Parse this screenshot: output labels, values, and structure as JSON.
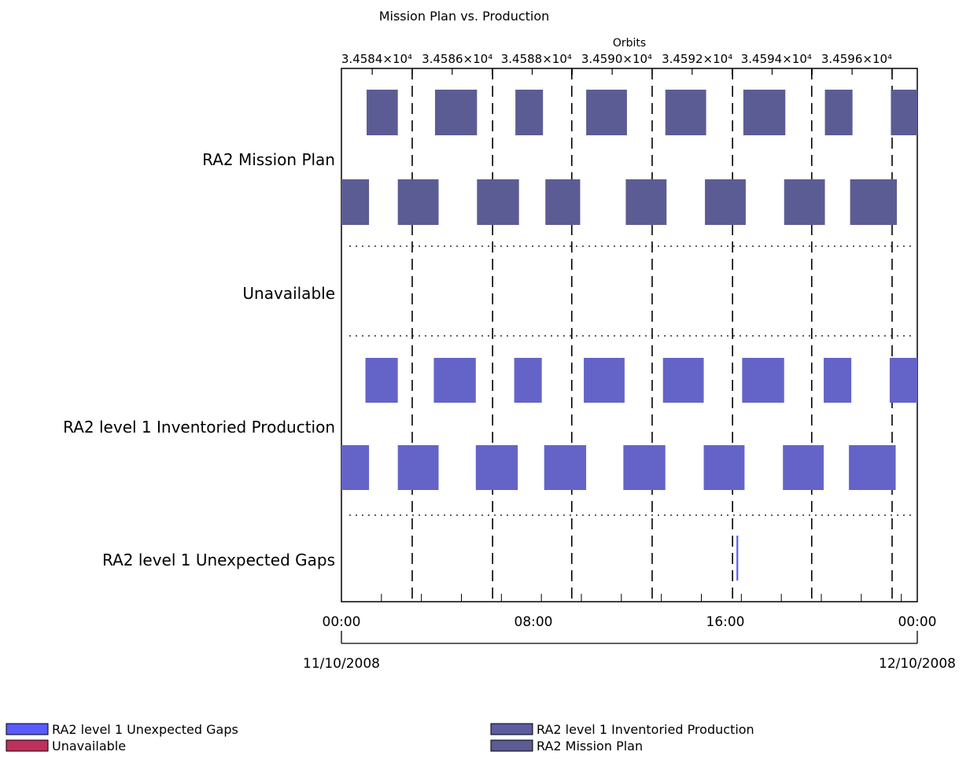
{
  "chart_data": {
    "type": "gantt",
    "title": "Mission Plan vs. Production",
    "top_axis": {
      "label": "Orbits",
      "tick_labels": [
        "3.4584×10⁴",
        "3.4586×10⁴",
        "3.4588×10⁴",
        "3.4590×10⁴",
        "3.4592×10⁴",
        "3.4594×10⁴",
        "3.4596×10⁴"
      ]
    },
    "x_axis": {
      "range_hours": [
        0,
        24
      ],
      "tick_labels": [
        {
          "hour": 0,
          "label": "00:00"
        },
        {
          "hour": 8,
          "label": "08:00"
        },
        {
          "hour": 16,
          "label": "16:00"
        },
        {
          "hour": 24,
          "label": "00:00"
        }
      ],
      "date_labels": [
        {
          "hour": 0,
          "label": "11/10/2008"
        },
        {
          "hour": 24,
          "label": "12/10/2008"
        }
      ]
    },
    "orbit_boundaries_hours": [
      2.95,
      6.3,
      9.6,
      12.95,
      16.3,
      19.6,
      22.95
    ],
    "rows": [
      {
        "label": "RA2 Mission Plan",
        "color": "#5c5c94",
        "upper_intervals": [
          [
            1.05,
            2.35
          ],
          [
            3.9,
            5.65
          ],
          [
            7.25,
            8.4
          ],
          [
            10.2,
            11.9
          ],
          [
            13.5,
            15.2
          ],
          [
            16.75,
            18.5
          ],
          [
            20.15,
            21.3
          ],
          [
            22.9,
            24.0
          ]
        ],
        "lower_intervals": [
          [
            0.0,
            1.15
          ],
          [
            2.35,
            4.05
          ],
          [
            5.65,
            7.4
          ],
          [
            8.5,
            9.95
          ],
          [
            11.85,
            13.55
          ],
          [
            15.15,
            16.85
          ],
          [
            18.45,
            20.15
          ],
          [
            21.2,
            23.15
          ]
        ]
      },
      {
        "label": "Unavailable",
        "color": "#c0305c",
        "upper_intervals": [],
        "lower_intervals": []
      },
      {
        "label": "RA2 level 1 Inventoried Production",
        "color": "#6464c8",
        "upper_intervals": [
          [
            1.0,
            2.35
          ],
          [
            3.85,
            5.6
          ],
          [
            7.2,
            8.35
          ],
          [
            10.1,
            11.8
          ],
          [
            13.4,
            15.1
          ],
          [
            16.7,
            18.45
          ],
          [
            20.1,
            21.25
          ],
          [
            22.85,
            24.0
          ]
        ],
        "lower_intervals": [
          [
            0.0,
            1.15
          ],
          [
            2.35,
            4.05
          ],
          [
            5.6,
            7.35
          ],
          [
            8.45,
            10.2
          ],
          [
            11.75,
            13.5
          ],
          [
            15.1,
            16.8
          ],
          [
            18.4,
            20.1
          ],
          [
            21.15,
            23.1
          ]
        ]
      },
      {
        "label": "RA2 level 1 Unexpected Gaps",
        "color": "#5a5aff",
        "marks_hours": [
          16.5
        ]
      }
    ],
    "legend": {
      "placement": "bottom",
      "items": [
        {
          "label": "RA2 level 1 Unexpected Gaps",
          "color": "#5a5aff"
        },
        {
          "label": "Unavailable",
          "color": "#c0305c"
        },
        {
          "label": "RA2 level 1 Inventoried Production",
          "color": "#5c5ca0"
        },
        {
          "label": "RA2 Mission Plan",
          "color": "#5c5c94"
        }
      ]
    },
    "grid": "dashed orbit boundaries, dotted row separators"
  }
}
